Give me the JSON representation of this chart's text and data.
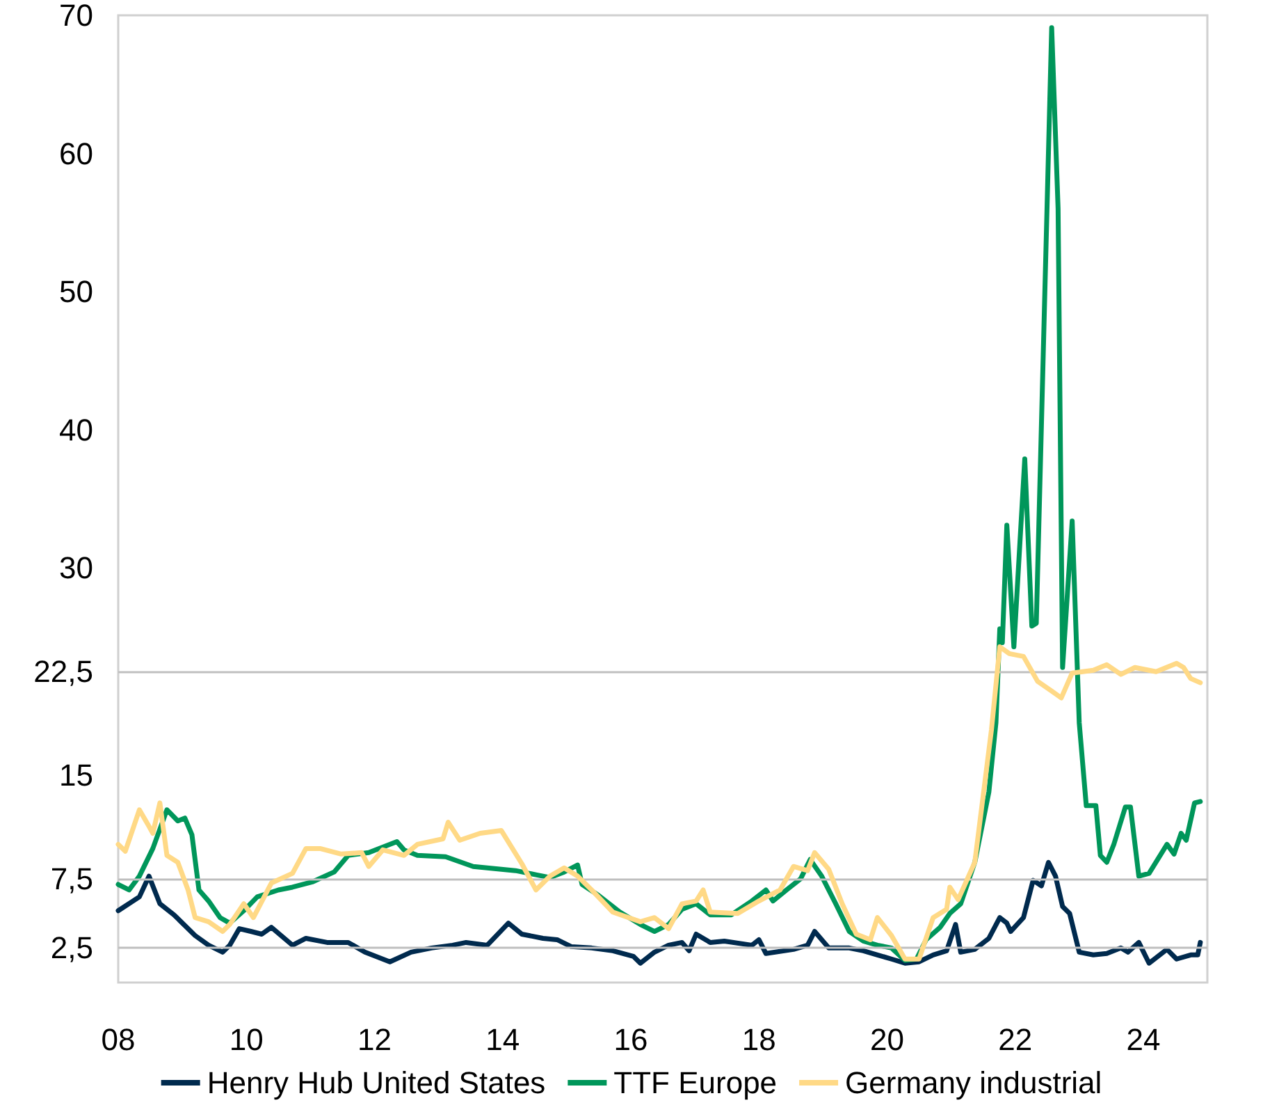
{
  "chart_data": {
    "type": "line",
    "xlim": [
      2008,
      2025
    ],
    "xticks": [
      {
        "value": 2008,
        "label": "08"
      },
      {
        "value": 2010,
        "label": "10"
      },
      {
        "value": 2012,
        "label": "12"
      },
      {
        "value": 2014,
        "label": "14"
      },
      {
        "value": 2016,
        "label": "16"
      },
      {
        "value": 2018,
        "label": "18"
      },
      {
        "value": 2020,
        "label": "20"
      },
      {
        "value": 2022,
        "label": "22"
      },
      {
        "value": 2024,
        "label": "24"
      }
    ],
    "ylim": [
      0,
      70
    ],
    "yticks": [
      {
        "value": 2.5,
        "label": "2,5"
      },
      {
        "value": 7.5,
        "label": "7,5"
      },
      15,
      {
        "value": 22.5,
        "label": "22,5"
      },
      30,
      40,
      50,
      60,
      70
    ],
    "legend": "bottom",
    "marker": "none",
    "line_style": "solid",
    "ref_lines": [
      {
        "axis": "y",
        "value": 2.5,
        "color": "#bfbfbf"
      },
      {
        "axis": "y",
        "value": 7.5,
        "color": "#bfbfbf"
      },
      {
        "axis": "y",
        "value": 22.5,
        "color": "#bfbfbf"
      }
    ],
    "series": [
      {
        "name": "Henry Hub United States",
        "color": "#002a4e",
        "x": [
          2008.0,
          2008.33,
          2008.48,
          2008.65,
          2008.87,
          2009.2,
          2009.41,
          2009.63,
          2009.74,
          2009.89,
          2010.07,
          2010.24,
          2010.39,
          2010.72,
          2010.93,
          2011.26,
          2011.59,
          2011.85,
          2012.24,
          2012.57,
          2012.89,
          2013.22,
          2013.43,
          2013.76,
          2014.09,
          2014.3,
          2014.63,
          2014.85,
          2015.07,
          2015.39,
          2015.72,
          2016.04,
          2016.15,
          2016.37,
          2016.59,
          2016.8,
          2016.91,
          2017.02,
          2017.24,
          2017.46,
          2017.89,
          2018.0,
          2018.11,
          2018.54,
          2018.76,
          2018.87,
          2019.09,
          2019.41,
          2019.63,
          2019.85,
          2020.07,
          2020.28,
          2020.5,
          2020.72,
          2020.93,
          2021.07,
          2021.15,
          2021.37,
          2021.59,
          2021.76,
          2021.87,
          2021.93,
          2022.13,
          2022.28,
          2022.41,
          2022.52,
          2022.63,
          2022.74,
          2022.85,
          2023.0,
          2023.22,
          2023.43,
          2023.65,
          2023.76,
          2023.93,
          2024.09,
          2024.37,
          2024.52,
          2024.74,
          2024.85,
          2024.89
        ],
        "values": [
          5.2,
          6.2,
          7.7,
          5.7,
          4.9,
          3.4,
          2.7,
          2.2,
          2.7,
          3.9,
          3.7,
          3.5,
          4.0,
          2.7,
          3.2,
          2.9,
          2.9,
          2.2,
          1.5,
          2.2,
          2.5,
          2.7,
          2.9,
          2.7,
          4.3,
          3.5,
          3.2,
          3.1,
          2.6,
          2.5,
          2.3,
          1.9,
          1.4,
          2.2,
          2.7,
          2.9,
          2.3,
          3.5,
          2.9,
          3.0,
          2.7,
          3.1,
          2.1,
          2.4,
          2.7,
          3.7,
          2.5,
          2.5,
          2.3,
          2.0,
          1.7,
          1.4,
          1.5,
          2.0,
          2.3,
          4.2,
          2.2,
          2.4,
          3.2,
          4.7,
          4.3,
          3.7,
          4.7,
          7.4,
          7.0,
          8.7,
          7.7,
          5.5,
          5.0,
          2.2,
          2.0,
          2.1,
          2.5,
          2.2,
          2.9,
          1.4,
          2.4,
          1.7,
          2.0,
          2.0,
          2.9
        ]
      },
      {
        "name": "TTF Europe",
        "color": "#00965a",
        "x": [
          2008.0,
          2008.17,
          2008.33,
          2008.54,
          2008.76,
          2008.93,
          2009.04,
          2009.15,
          2009.26,
          2009.41,
          2009.59,
          2009.74,
          2009.96,
          2010.17,
          2010.5,
          2010.72,
          2011.04,
          2011.37,
          2011.59,
          2011.91,
          2012.35,
          2012.46,
          2012.67,
          2013.11,
          2013.54,
          2014.2,
          2014.52,
          2014.74,
          2014.96,
          2015.17,
          2015.24,
          2015.5,
          2015.83,
          2016.15,
          2016.37,
          2016.59,
          2016.8,
          2017.02,
          2017.24,
          2017.57,
          2017.89,
          2018.11,
          2018.22,
          2018.43,
          2018.65,
          2018.8,
          2018.98,
          2019.2,
          2019.41,
          2019.63,
          2019.85,
          2020.07,
          2020.28,
          2020.46,
          2020.61,
          2020.83,
          2020.98,
          2021.15,
          2021.37,
          2021.59,
          2021.7,
          2021.76,
          2021.8,
          2021.87,
          2021.98,
          2022.15,
          2022.26,
          2022.33,
          2022.57,
          2022.67,
          2022.74,
          2022.89,
          2023.0,
          2023.11,
          2023.26,
          2023.33,
          2023.43,
          2023.54,
          2023.72,
          2023.8,
          2023.93,
          2024.09,
          2024.37,
          2024.48,
          2024.59,
          2024.67,
          2024.8,
          2024.89
        ],
        "values": [
          7.1,
          6.7,
          7.7,
          9.7,
          12.5,
          11.7,
          11.9,
          10.7,
          6.7,
          5.9,
          4.7,
          4.3,
          5.2,
          6.2,
          6.7,
          6.9,
          7.3,
          8.0,
          9.2,
          9.4,
          10.2,
          9.6,
          9.2,
          9.1,
          8.4,
          8.1,
          7.8,
          7.6,
          8.0,
          8.5,
          7.1,
          6.3,
          5.1,
          4.2,
          3.7,
          4.2,
          5.3,
          5.7,
          4.9,
          4.9,
          5.9,
          6.7,
          5.9,
          6.7,
          7.5,
          8.9,
          7.7,
          5.7,
          3.7,
          3.0,
          2.7,
          2.5,
          1.6,
          1.7,
          3.1,
          4.0,
          5.0,
          5.7,
          8.7,
          13.8,
          18.8,
          25.6,
          24.6,
          33.1,
          24.3,
          37.9,
          25.8,
          26.0,
          69.1,
          56.0,
          22.8,
          33.4,
          18.8,
          12.8,
          12.8,
          9.2,
          8.7,
          10.0,
          12.7,
          12.7,
          7.7,
          7.9,
          10.0,
          9.3,
          10.8,
          10.3,
          13.0,
          13.1
        ]
      },
      {
        "name": "Germany industrial",
        "color": "#ffd986",
        "x": [
          2008.0,
          2008.11,
          2008.22,
          2008.33,
          2008.48,
          2008.54,
          2008.65,
          2008.76,
          2008.93,
          2009.09,
          2009.2,
          2009.41,
          2009.63,
          2009.74,
          2009.96,
          2010.11,
          2010.39,
          2010.72,
          2010.93,
          2011.15,
          2011.48,
          2011.8,
          2011.91,
          2012.13,
          2012.46,
          2012.67,
          2013.07,
          2013.15,
          2013.33,
          2013.65,
          2013.98,
          2014.3,
          2014.52,
          2014.74,
          2014.96,
          2015.17,
          2015.39,
          2015.72,
          2016.15,
          2016.37,
          2016.59,
          2016.8,
          2017.02,
          2017.13,
          2017.24,
          2017.67,
          2018.0,
          2018.33,
          2018.54,
          2018.76,
          2018.87,
          2019.09,
          2019.3,
          2019.52,
          2019.74,
          2019.85,
          2020.07,
          2020.28,
          2020.5,
          2020.72,
          2020.93,
          2020.98,
          2021.11,
          2021.37,
          2021.63,
          2021.76,
          2021.91,
          2022.13,
          2022.35,
          2022.57,
          2022.72,
          2022.89,
          2023.22,
          2023.43,
          2023.65,
          2023.87,
          2024.2,
          2024.52,
          2024.63,
          2024.74,
          2024.89
        ],
        "values": [
          10.0,
          9.5,
          11.0,
          12.5,
          11.3,
          10.8,
          13.0,
          9.2,
          8.7,
          6.7,
          4.7,
          4.4,
          3.7,
          4.2,
          5.7,
          4.7,
          7.2,
          7.9,
          9.7,
          9.7,
          9.3,
          9.4,
          8.4,
          9.6,
          9.2,
          10.0,
          10.4,
          11.6,
          10.3,
          10.8,
          11.0,
          8.6,
          6.7,
          7.7,
          8.3,
          7.7,
          6.7,
          5.1,
          4.4,
          4.7,
          3.9,
          5.7,
          5.9,
          6.7,
          5.1,
          5.0,
          5.9,
          6.7,
          8.4,
          8.1,
          9.4,
          8.2,
          5.7,
          3.5,
          3.1,
          4.7,
          3.4,
          1.7,
          1.7,
          4.7,
          5.3,
          6.9,
          6.0,
          8.7,
          18.3,
          24.3,
          23.8,
          23.6,
          21.8,
          21.1,
          20.6,
          22.4,
          22.6,
          23.0,
          22.3,
          22.8,
          22.5,
          23.1,
          22.8,
          22.0,
          21.7
        ]
      }
    ]
  }
}
